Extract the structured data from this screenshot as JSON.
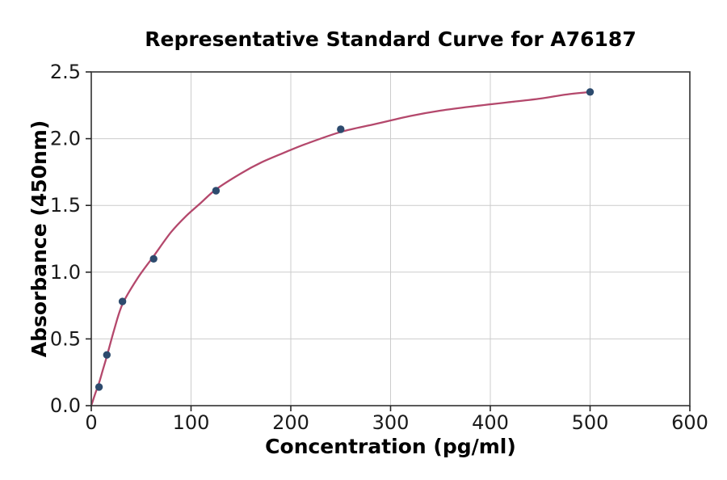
{
  "chart_data": {
    "type": "scatter",
    "title": "Representative Standard Curve for A76187",
    "xlabel": "Concentration (pg/ml)",
    "ylabel": "Absorbance (450nm)",
    "xlim": [
      0,
      600
    ],
    "ylim": [
      0,
      2.5
    ],
    "grid": true,
    "legend": "none",
    "x_ticks": {
      "values": [
        0,
        100,
        200,
        300,
        400,
        500,
        600
      ],
      "labels": [
        "0",
        "100",
        "200",
        "300",
        "400",
        "500",
        "600"
      ]
    },
    "y_ticks": {
      "values": [
        0,
        0.5,
        1,
        1.5,
        2,
        2.5
      ],
      "labels": [
        "0.0",
        "0.5",
        "1.0",
        "1.5",
        "2.0",
        "2.5"
      ]
    },
    "points": [
      [
        7.8,
        0.14
      ],
      [
        15.6,
        0.38
      ],
      [
        31.25,
        0.78
      ],
      [
        62.5,
        1.1
      ],
      [
        125,
        1.61
      ],
      [
        250,
        2.07
      ],
      [
        500,
        2.35
      ]
    ],
    "curve_points": [
      [
        0,
        0
      ],
      [
        4,
        0.09
      ],
      [
        7.8,
        0.17
      ],
      [
        11.7,
        0.27
      ],
      [
        15.6,
        0.37
      ],
      [
        23,
        0.57
      ],
      [
        31.25,
        0.76
      ],
      [
        46,
        0.95
      ],
      [
        62.5,
        1.12
      ],
      [
        80,
        1.3
      ],
      [
        95,
        1.42
      ],
      [
        110,
        1.52
      ],
      [
        125,
        1.62
      ],
      [
        150,
        1.74
      ],
      [
        170,
        1.82
      ],
      [
        195,
        1.9
      ],
      [
        215,
        1.96
      ],
      [
        250,
        2.05
      ],
      [
        285,
        2.11
      ],
      [
        320,
        2.17
      ],
      [
        350,
        2.21
      ],
      [
        380,
        2.24
      ],
      [
        415,
        2.27
      ],
      [
        450,
        2.3
      ],
      [
        475,
        2.33
      ],
      [
        500,
        2.35
      ]
    ],
    "colors": {
      "curve": "#b4486c",
      "marker": "#2d4b6e",
      "grid": "#cccccc",
      "spine": "#3d3d3d",
      "tick": "#262626",
      "text": "#000000",
      "background": "#ffffff"
    }
  }
}
